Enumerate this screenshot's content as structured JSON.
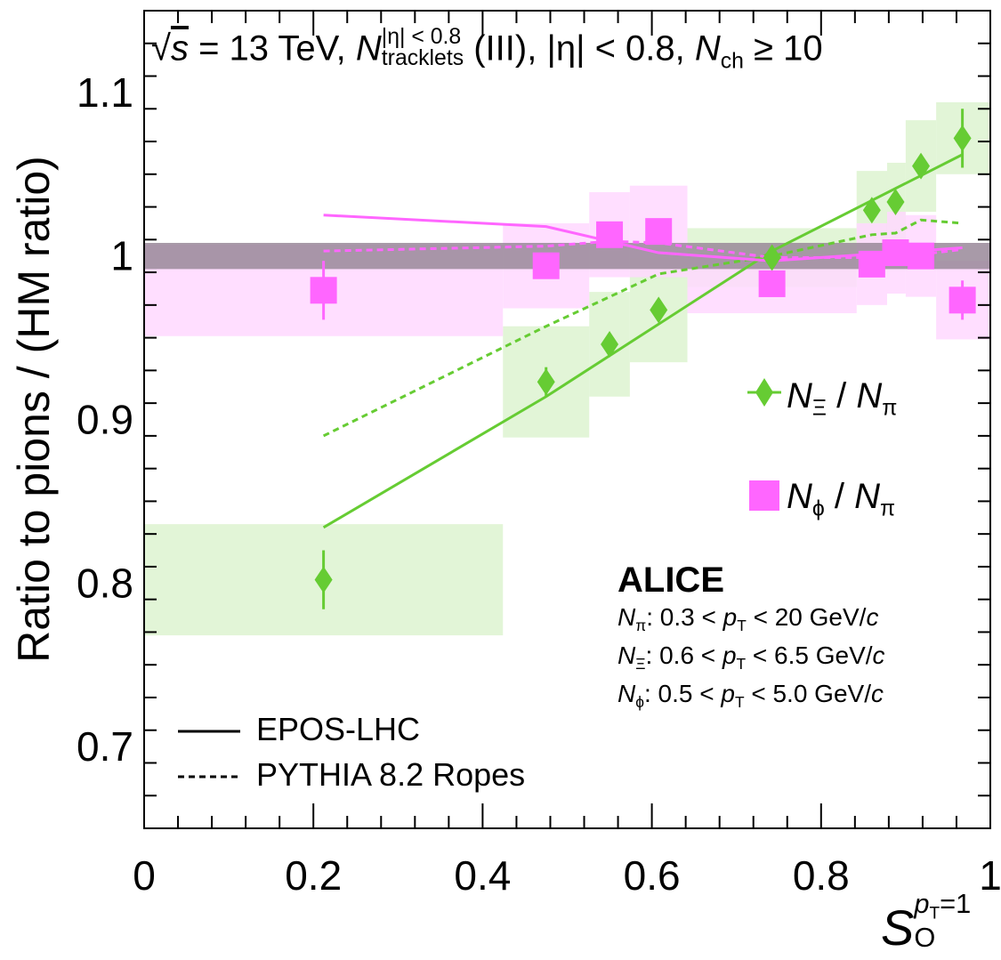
{
  "header": {
    "sqrt_s": "s",
    "energy_text": " = 13 TeV,  ",
    "n_symbol": "N",
    "n_sup": "|η| < 0.8",
    "n_sub": "tracklets",
    "rest_text": " (III), |η| < 0.8, ",
    "nch_symbol": "N",
    "nch_sub": "ch",
    "nch_cond": " ≥ 10"
  },
  "axes": {
    "ylabel": "Ratio to pions / (HM ratio)",
    "xlabel_symbol": "S",
    "xlabel_sub": "O",
    "xlabel_sup_p": "p",
    "xlabel_sup_sub": "T",
    "xlabel_sup_tail": "=1"
  },
  "legend_species": {
    "xi": {
      "num": "N",
      "num_sub": "Ξ",
      "sep": " / ",
      "den": "N",
      "den_sub": "π"
    },
    "phi": {
      "num": "N",
      "num_sub": "ϕ",
      "sep": " / ",
      "den": "N",
      "den_sub": "π"
    }
  },
  "legend_models": {
    "epos": "EPOS-LHC",
    "pythia": "PYTHIA 8.2 Ropes"
  },
  "alice": {
    "label": "ALICE",
    "rows": [
      {
        "sym": "N",
        "sub": "π",
        "text": ": 0.3 < ",
        "p": "p",
        "psub": "T",
        "tail": " < 20 GeV/",
        "c": "c"
      },
      {
        "sym": "N",
        "sub": "Ξ",
        "text": ": 0.6 < ",
        "p": "p",
        "psub": "T",
        "tail": " < 6.5 GeV/",
        "c": "c"
      },
      {
        "sym": "N",
        "sub": "ϕ",
        "text": ": 0.5 < ",
        "p": "p",
        "psub": "T",
        "tail": " < 5.0 GeV/",
        "c": "c"
      }
    ]
  },
  "colors": {
    "xi": "#66cc33",
    "xi_box": "#ddf3d0",
    "phi": "#ff66ff",
    "phi_box": "#ffd8ff",
    "band": "#998899"
  },
  "chart_data": {
    "type": "scatter",
    "xlim": [
      0,
      1
    ],
    "ylim": [
      0.65,
      1.15
    ],
    "x_ticks": [
      "0",
      "0.2",
      "0.4",
      "0.6",
      "0.8",
      "1"
    ],
    "x_tick_values": [
      0,
      0.2,
      0.4,
      0.6,
      0.8,
      1
    ],
    "y_ticks": [
      "0.7",
      "0.8",
      "0.9",
      "1",
      "1.1"
    ],
    "y_tick_values": [
      0.7,
      0.8,
      0.9,
      1.0,
      1.1
    ],
    "reference_band": {
      "y_low": 0.992,
      "y_high": 1.008
    },
    "series": [
      {
        "name": "N_Ξ / N_π",
        "marker": "diamond",
        "points": [
          {
            "x": 0.212,
            "y": 0.802,
            "err": 0.018,
            "x_low": 0.0,
            "x_high": 0.424,
            "sys": 0.034
          },
          {
            "x": 0.475,
            "y": 0.923,
            "err": 0.009,
            "x_low": 0.424,
            "x_high": 0.526,
            "sys": 0.034
          },
          {
            "x": 0.55,
            "y": 0.946,
            "err": 0.006,
            "x_low": 0.526,
            "x_high": 0.574,
            "sys": 0.032
          },
          {
            "x": 0.608,
            "y": 0.967,
            "err": 0.005,
            "x_low": 0.574,
            "x_high": 0.642,
            "sys": 0.032
          },
          {
            "x": 0.742,
            "y": 0.999,
            "err": 0.005,
            "x_low": 0.642,
            "x_high": 0.842,
            "sys": 0.018
          },
          {
            "x": 0.86,
            "y": 1.028,
            "err": 0.005,
            "x_low": 0.842,
            "x_high": 0.878,
            "sys": 0.024
          },
          {
            "x": 0.888,
            "y": 1.033,
            "err": 0.005,
            "x_low": 0.878,
            "x_high": 0.9,
            "sys": 0.024
          },
          {
            "x": 0.918,
            "y": 1.055,
            "err": 0.007,
            "x_low": 0.9,
            "x_high": 0.936,
            "sys": 0.028
          },
          {
            "x": 0.967,
            "y": 1.072,
            "err": 0.018,
            "x_low": 0.936,
            "x_high": 1.0,
            "sys": 0.022
          }
        ]
      },
      {
        "name": "N_ϕ / N_π",
        "marker": "square",
        "points": [
          {
            "x": 0.212,
            "y": 0.979,
            "err": 0.018,
            "x_low": 0.0,
            "x_high": 0.424,
            "sys": 0.028
          },
          {
            "x": 0.475,
            "y": 0.994,
            "err": 0.005,
            "x_low": 0.424,
            "x_high": 0.526,
            "sys": 0.026
          },
          {
            "x": 0.55,
            "y": 1.013,
            "err": 0.005,
            "x_low": 0.526,
            "x_high": 0.574,
            "sys": 0.026
          },
          {
            "x": 0.608,
            "y": 1.015,
            "err": 0.005,
            "x_low": 0.574,
            "x_high": 0.642,
            "sys": 0.028
          },
          {
            "x": 0.742,
            "y": 0.983,
            "err": 0.005,
            "x_low": 0.642,
            "x_high": 0.842,
            "sys": 0.018
          },
          {
            "x": 0.86,
            "y": 0.995,
            "err": 0.005,
            "x_low": 0.842,
            "x_high": 0.878,
            "sys": 0.025
          },
          {
            "x": 0.888,
            "y": 1.002,
            "err": 0.005,
            "x_low": 0.878,
            "x_high": 0.9,
            "sys": 0.025
          },
          {
            "x": 0.918,
            "y": 1.0,
            "err": 0.005,
            "x_low": 0.9,
            "x_high": 0.936,
            "sys": 0.025
          },
          {
            "x": 0.967,
            "y": 0.973,
            "err": 0.012,
            "x_low": 0.936,
            "x_high": 1.0,
            "sys": 0.024
          }
        ]
      }
    ],
    "models": [
      {
        "name": "EPOS-LHC",
        "style": "solid",
        "species": "xi",
        "x": [
          0.212,
          0.475,
          0.742,
          0.967
        ],
        "y": [
          0.834,
          0.914,
          1.003,
          1.062
        ]
      },
      {
        "name": "PYTHIA 8.2 Ropes",
        "style": "dashed",
        "species": "xi",
        "x": [
          0.212,
          0.475,
          0.55,
          0.608,
          0.742,
          0.86,
          0.888,
          0.918,
          0.967
        ],
        "y": [
          0.89,
          0.957,
          0.975,
          0.989,
          1.0,
          1.013,
          1.014,
          1.022,
          1.02
        ]
      },
      {
        "name": "EPOS-LHC",
        "style": "solid",
        "species": "phi",
        "x": [
          0.212,
          0.475,
          0.608,
          0.742,
          0.967
        ],
        "y": [
          1.025,
          1.018,
          1.002,
          0.997,
          1.005
        ]
      },
      {
        "name": "PYTHIA 8.2 Ropes",
        "style": "dashed",
        "species": "phi",
        "x": [
          0.212,
          0.475,
          0.55,
          0.608,
          0.742,
          0.86,
          0.888,
          0.918,
          0.967
        ],
        "y": [
          1.003,
          1.006,
          1.009,
          1.008,
          0.999,
          0.999,
          1.0,
          1.001,
          1.004
        ]
      }
    ]
  }
}
